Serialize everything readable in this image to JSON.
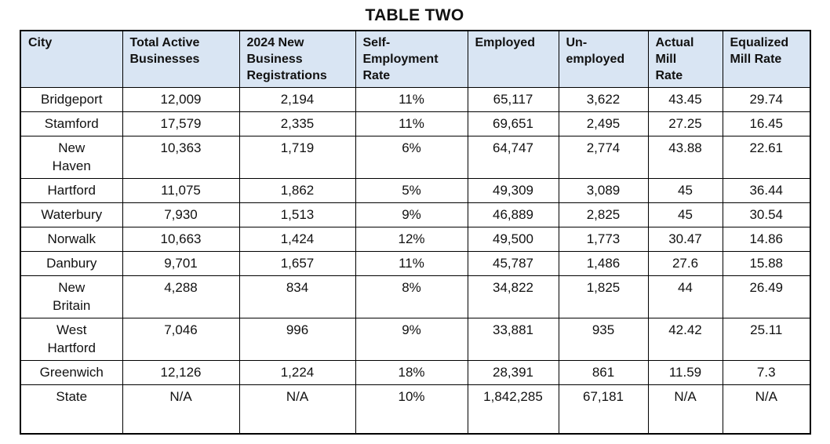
{
  "title": "TABLE TWO",
  "colors": {
    "header_bg": "#D9E5F3",
    "border": "#000000",
    "text": "#111111"
  },
  "table": {
    "columns": [
      "City",
      "Total Active\nBusinesses",
      "2024 New\nBusiness\nRegistrations",
      "Self-\nEmployment\nRate",
      "Employed",
      "Un-\nemployed",
      "Actual\nMill\nRate",
      "Equalized\nMill Rate"
    ],
    "rows": [
      {
        "city": "Bridgeport",
        "values": [
          "12,009",
          "2,194",
          "11%",
          "65,117",
          "3,622",
          "43.45",
          "29.74"
        ]
      },
      {
        "city": "Stamford",
        "values": [
          "17,579",
          "2,335",
          "11%",
          "69,651",
          "2,495",
          "27.25",
          "16.45"
        ]
      },
      {
        "city": "New\nHaven",
        "values": [
          "10,363",
          "1,719",
          "6%",
          "64,747",
          "2,774",
          "43.88",
          "22.61"
        ]
      },
      {
        "city": "Hartford",
        "values": [
          "11,075",
          "1,862",
          "5%",
          "49,309",
          "3,089",
          "45",
          "36.44"
        ]
      },
      {
        "city": "Waterbury",
        "values": [
          "7,930",
          "1,513",
          "9%",
          "46,889",
          "2,825",
          "45",
          "30.54"
        ]
      },
      {
        "city": "Norwalk",
        "values": [
          "10,663",
          "1,424",
          "12%",
          "49,500",
          "1,773",
          "30.47",
          "14.86"
        ]
      },
      {
        "city": "Danbury",
        "values": [
          "9,701",
          "1,657",
          "11%",
          "45,787",
          "1,486",
          "27.6",
          "15.88"
        ]
      },
      {
        "city": "New\nBritain",
        "values": [
          "4,288",
          "834",
          "8%",
          "34,822",
          "1,825",
          "44",
          "26.49"
        ]
      },
      {
        "city": "West\nHartford",
        "values": [
          "7,046",
          "996",
          "9%",
          "33,881",
          "935",
          "42.42",
          "25.11"
        ]
      },
      {
        "city": "Greenwich",
        "values": [
          "12,126",
          "1,224",
          "18%",
          "28,391",
          "861",
          "11.59",
          "7.3"
        ]
      },
      {
        "city": "State",
        "values": [
          "N/A",
          "N/A",
          "10%",
          "1,842,285",
          "67,181",
          "N/A",
          "N/A"
        ]
      }
    ]
  }
}
